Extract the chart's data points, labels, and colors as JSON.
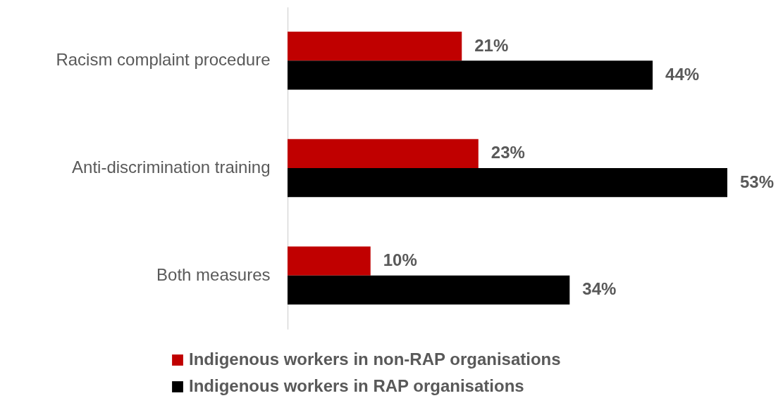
{
  "chart_data": {
    "type": "bar",
    "orientation": "horizontal",
    "categories": [
      "Racism complaint procedure",
      "Anti-discrimination training",
      "Both measures"
    ],
    "series": [
      {
        "name": "Indigenous workers in non-RAP organisations",
        "color": "#c00000",
        "values": [
          21,
          23,
          10
        ],
        "value_labels": [
          "21%",
          "23%",
          "10%"
        ]
      },
      {
        "name": "Indigenous workers in RAP organisations",
        "color": "#000000",
        "values": [
          44,
          53,
          34
        ],
        "value_labels": [
          "44%",
          "53%",
          "34%"
        ]
      }
    ],
    "legend": "bottom",
    "grid": false
  }
}
